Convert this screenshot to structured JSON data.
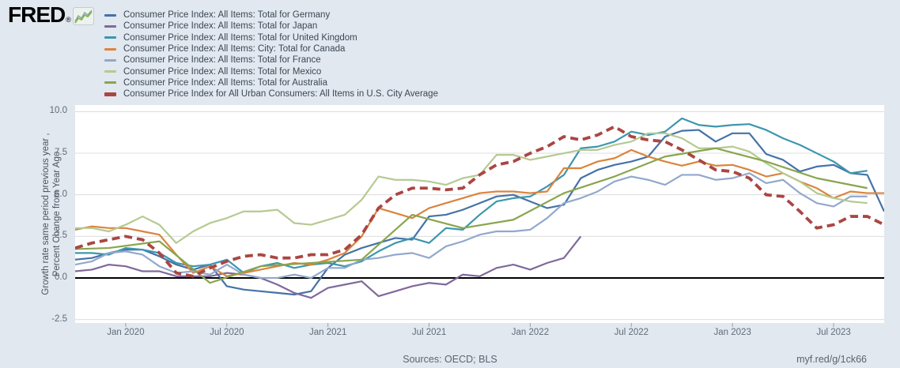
{
  "page": {
    "background": "#e1e8ef",
    "plot_background": "#ffffff"
  },
  "logo": {
    "text": "FRED",
    "registered": "®",
    "icon": "fred-sparkline-icon"
  },
  "legend": {
    "items": [
      {
        "label": "Consumer Price Index: All Items: Total for Germany",
        "color": "#4572A7",
        "thick": false
      },
      {
        "label": "Consumer Price Index: All Items: Total for Japan",
        "color": "#80699B",
        "thick": false
      },
      {
        "label": "Consumer Price Index: All Items: Total for United Kingdom",
        "color": "#3D96AE",
        "thick": false
      },
      {
        "label": "Consumer Price Index: All Items: City: Total for Canada",
        "color": "#DB843D",
        "thick": false
      },
      {
        "label": "Consumer Price Index: All Items: Total for France",
        "color": "#92A8CD",
        "thick": false
      },
      {
        "label": "Consumer Price Index: All Items: Total for Mexico",
        "color": "#B5CA92",
        "thick": false
      },
      {
        "label": "Consumer Price Index: All Items: Total for Australia",
        "color": "#89A54E",
        "thick": false
      },
      {
        "label": "Consumer Price Index for All Urban Consumers: All Items in U.S. City Average",
        "color": "#AA4643",
        "thick": true
      }
    ]
  },
  "y_axis": {
    "title_line1": "Growth rate same period previous year ,",
    "title_line2": "Percent Change from Year Ago"
  },
  "footer": {
    "sources": "Sources: OECD; BLS",
    "link": "myf.red/g/1ck66"
  },
  "chart_data": {
    "type": "line",
    "title": "",
    "xlabel": "",
    "ylabel": "Growth rate same period previous year , Percent Change from Year Ago",
    "x_unit": "month_index_from_2019-10",
    "months_span": 48,
    "x_range": [
      "Oct 2019",
      "Oct 2023"
    ],
    "ylim": [
      -2.71,
      10.4
    ],
    "grid": true,
    "zero_line": true,
    "legend_position": "top-left",
    "y_ticks": [
      "10.0",
      "7.5",
      "5.0",
      "2.5",
      "0.0",
      "-2.5"
    ],
    "x_ticks": [
      {
        "index": 3,
        "label": "Jan 2020"
      },
      {
        "index": 9,
        "label": "Jul 2020"
      },
      {
        "index": 15,
        "label": "Jan 2021"
      },
      {
        "index": 21,
        "label": "Jul 2021"
      },
      {
        "index": 27,
        "label": "Jan 2022"
      },
      {
        "index": 33,
        "label": "Jul 2022"
      },
      {
        "index": 39,
        "label": "Jan 2023"
      },
      {
        "index": 45,
        "label": "Jul 2023"
      }
    ],
    "series": [
      {
        "name": "Germany",
        "color": "#4572A7",
        "dashed": false,
        "width": 2.2,
        "start_index": 0,
        "values": [
          1.1,
          1.2,
          1.5,
          1.7,
          1.7,
          1.3,
          0.8,
          0.5,
          0.8,
          -0.5,
          -0.7,
          -0.8,
          -0.9,
          -1.0,
          -0.8,
          0.6,
          1.4,
          1.8,
          2.1,
          2.4,
          2.3,
          3.7,
          3.8,
          4.1,
          4.5,
          4.9,
          5.0,
          4.6,
          4.2,
          4.4,
          6.0,
          6.5,
          6.8,
          7.0,
          7.3,
          8.5,
          8.85,
          8.9,
          8.2,
          8.7,
          8.7,
          7.45,
          7.1,
          6.4,
          6.7,
          6.8,
          6.3,
          6.2,
          4.0
        ]
      },
      {
        "name": "Japan",
        "color": "#80699B",
        "dashed": false,
        "width": 2.2,
        "start_index": 0,
        "values": [
          0.4,
          0.5,
          0.8,
          0.7,
          0.4,
          0.4,
          0.1,
          0.1,
          0.1,
          0.3,
          0.2,
          0.0,
          -0.4,
          -0.9,
          -1.2,
          -0.6,
          -0.4,
          -0.2,
          -1.1,
          -0.8,
          -0.5,
          -0.3,
          -0.4,
          0.2,
          0.1,
          0.6,
          0.8,
          0.5,
          0.9,
          1.2,
          2.5
        ]
      },
      {
        "name": "United Kingdom",
        "color": "#3D96AE",
        "dashed": false,
        "width": 2.2,
        "start_index": 0,
        "values": [
          1.5,
          1.5,
          1.4,
          1.8,
          1.7,
          1.5,
          0.9,
          0.7,
          0.8,
          1.1,
          0.3,
          0.7,
          0.9,
          0.6,
          0.8,
          0.9,
          0.7,
          1.0,
          1.6,
          2.1,
          2.4,
          2.1,
          3.0,
          2.9,
          3.8,
          4.6,
          4.8,
          4.9,
          5.5,
          6.2,
          7.8,
          7.9,
          8.2,
          8.8,
          8.6,
          8.8,
          9.6,
          9.2,
          9.1,
          9.2,
          9.25,
          8.9,
          8.4,
          8.0,
          7.5,
          7.0,
          6.3,
          6.45
        ]
      },
      {
        "name": "Canada",
        "color": "#DB843D",
        "dashed": false,
        "width": 2.2,
        "start_index": 0,
        "values": [
          2.9,
          3.1,
          3.0,
          3.0,
          2.8,
          2.6,
          1.4,
          0.3,
          0.7,
          0.1,
          0.3,
          0.5,
          0.7,
          0.9,
          0.8,
          1.1,
          1.5,
          2.5,
          4.2,
          3.9,
          3.6,
          4.2,
          4.5,
          4.8,
          5.1,
          5.2,
          5.2,
          5.1,
          5.2,
          6.6,
          6.6,
          7.0,
          7.2,
          7.7,
          7.3,
          7.0,
          6.75,
          7.0,
          6.75,
          6.8,
          6.5,
          6.1,
          6.3,
          5.8,
          5.4,
          4.8,
          5.2,
          5.1,
          5.1
        ]
      },
      {
        "name": "France",
        "color": "#92A8CD",
        "dashed": false,
        "width": 2.2,
        "start_index": 0,
        "values": [
          0.8,
          1.0,
          1.5,
          1.6,
          1.4,
          0.7,
          0.3,
          0.4,
          0.2,
          0.8,
          0.2,
          0.0,
          0.0,
          0.2,
          0.0,
          0.6,
          0.6,
          1.1,
          1.2,
          1.4,
          1.5,
          1.2,
          1.9,
          2.2,
          2.6,
          2.8,
          2.8,
          2.9,
          3.6,
          4.5,
          4.8,
          5.2,
          5.8,
          6.1,
          5.9,
          5.6,
          6.2,
          6.2,
          5.9,
          6.0,
          6.3,
          5.7,
          5.9,
          5.1,
          4.5,
          4.3,
          4.9,
          4.9
        ]
      },
      {
        "name": "Mexico",
        "color": "#B5CA92",
        "dashed": false,
        "width": 2.2,
        "start_index": 0,
        "values": [
          3.0,
          3.0,
          2.8,
          3.2,
          3.7,
          3.2,
          2.1,
          2.8,
          3.3,
          3.6,
          4.0,
          4.0,
          4.1,
          3.3,
          3.2,
          3.5,
          3.8,
          4.7,
          6.1,
          5.9,
          5.9,
          5.8,
          5.6,
          6.0,
          6.2,
          7.4,
          7.4,
          7.1,
          7.3,
          7.5,
          7.7,
          7.7,
          8.0,
          8.2,
          8.7,
          8.7,
          8.4,
          7.8,
          7.8,
          7.9,
          7.6,
          6.9,
          6.3,
          5.8,
          5.1,
          4.8,
          4.6,
          4.5
        ]
      },
      {
        "name": "Australia",
        "color": "#89A54E",
        "dashed": false,
        "width": 2.2,
        "x_indices": [
          -1,
          2,
          5,
          8,
          11,
          14,
          17,
          20,
          23,
          26,
          29,
          32,
          35,
          38,
          41,
          44,
          47
        ],
        "values": [
          1.7,
          1.8,
          2.2,
          -0.3,
          0.7,
          0.9,
          1.1,
          3.8,
          3.0,
          3.5,
          5.1,
          6.1,
          7.3,
          7.8,
          7.0,
          6.0,
          5.4
        ]
      },
      {
        "name": "U.S. City Average",
        "color": "#AA4643",
        "dashed": true,
        "width": 3.8,
        "start_index": 0,
        "values": [
          1.8,
          2.1,
          2.3,
          2.5,
          2.3,
          1.5,
          0.3,
          0.1,
          0.6,
          1.0,
          1.3,
          1.4,
          1.2,
          1.2,
          1.4,
          1.4,
          1.7,
          2.6,
          4.2,
          5.0,
          5.4,
          5.4,
          5.3,
          5.4,
          6.2,
          6.8,
          7.0,
          7.5,
          7.9,
          8.5,
          8.3,
          8.6,
          9.1,
          8.5,
          8.3,
          8.2,
          7.7,
          7.1,
          6.5,
          6.4,
          6.0,
          5.0,
          4.9,
          4.0,
          3.0,
          3.2,
          3.7,
          3.7,
          3.2
        ]
      }
    ]
  }
}
